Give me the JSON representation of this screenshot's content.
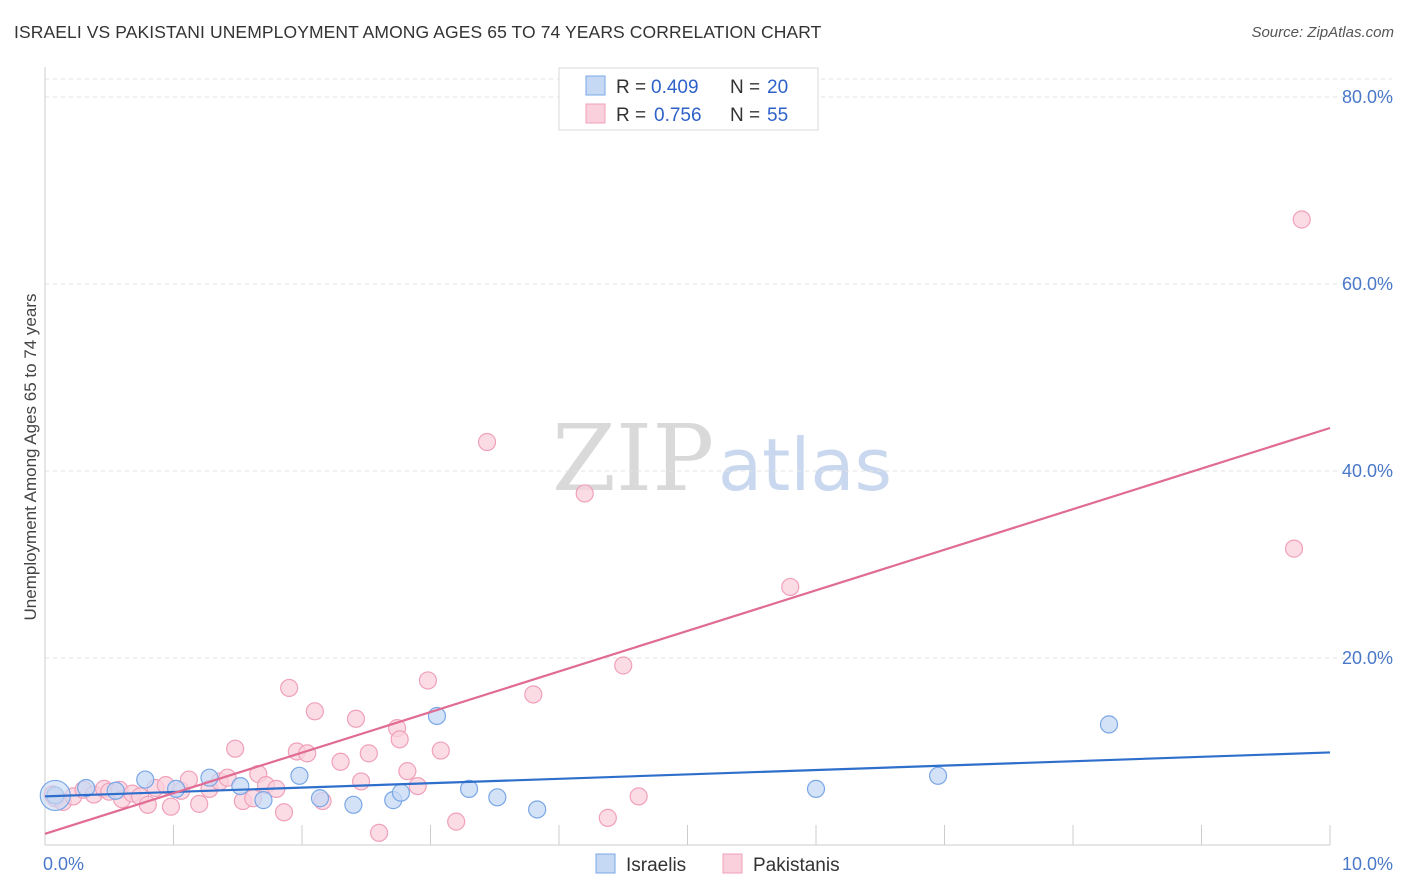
{
  "header": {
    "title": "ISRAELI VS PAKISTANI UNEMPLOYMENT AMONG AGES 65 TO 74 YEARS CORRELATION CHART",
    "source": "Source: ZipAtlas.com"
  },
  "watermark": {
    "zip": "ZIP",
    "atlas": "atlas"
  },
  "chart_data": {
    "type": "scatter",
    "title": "ISRAELI VS PAKISTANI UNEMPLOYMENT AMONG AGES 65 TO 74 YEARS CORRELATION CHART",
    "xlabel": "",
    "ylabel": "Unemployment Among Ages 65 to 74 years",
    "xlim": [
      0,
      10
    ],
    "ylim": [
      0,
      80
    ],
    "x_tick_labels": [
      "0.0%",
      "10.0%"
    ],
    "y_ticks": [
      20,
      40,
      60,
      80
    ],
    "y_tick_labels": [
      "20.0%",
      "40.0%",
      "60.0%",
      "80.0%"
    ],
    "grid": true,
    "legend_position": "top-center",
    "legend": [
      {
        "r_label": "R =",
        "r_value": "0.409",
        "n_label": "N =",
        "n_value": "20"
      },
      {
        "r_label": "R =",
        "r_value": "0.756",
        "n_label": "N =",
        "n_value": "55"
      }
    ],
    "series": [
      {
        "name": "Israelis",
        "color": "#7aa7e6",
        "fill": "#c5d8f4",
        "line_color": "#2f6fcc",
        "trend": [
          [
            0,
            5.2
          ],
          [
            10,
            9.9
          ]
        ],
        "points": [
          [
            0.08,
            5.3
          ],
          [
            0.32,
            6.1
          ],
          [
            0.55,
            5.8
          ],
          [
            0.78,
            7.0
          ],
          [
            1.02,
            6.0
          ],
          [
            1.28,
            7.2
          ],
          [
            1.52,
            6.3
          ],
          [
            1.7,
            4.8
          ],
          [
            1.98,
            7.4
          ],
          [
            2.14,
            5.0
          ],
          [
            2.4,
            4.3
          ],
          [
            2.71,
            4.8
          ],
          [
            2.77,
            5.6
          ],
          [
            3.05,
            13.8
          ],
          [
            3.3,
            6.0
          ],
          [
            3.52,
            5.1
          ],
          [
            3.83,
            3.8
          ],
          [
            6.0,
            6.0
          ],
          [
            6.95,
            7.4
          ],
          [
            8.28,
            12.9
          ]
        ]
      },
      {
        "name": "Pakistanis",
        "color": "#f0a0ba",
        "fill": "#fad0dc",
        "line_color": "#e06b93",
        "trend": [
          [
            0,
            1.2
          ],
          [
            10,
            44.6
          ]
        ],
        "points": [
          [
            0.08,
            5.0
          ],
          [
            0.14,
            4.6
          ],
          [
            0.22,
            5.2
          ],
          [
            0.3,
            5.9
          ],
          [
            0.38,
            5.4
          ],
          [
            0.46,
            6.0
          ],
          [
            0.5,
            5.7
          ],
          [
            0.58,
            5.9
          ],
          [
            0.6,
            4.9
          ],
          [
            0.68,
            5.5
          ],
          [
            0.74,
            5.2
          ],
          [
            0.8,
            4.3
          ],
          [
            0.86,
            6.1
          ],
          [
            0.94,
            6.4
          ],
          [
            0.98,
            4.1
          ],
          [
            1.06,
            5.8
          ],
          [
            1.12,
            7.0
          ],
          [
            1.2,
            4.4
          ],
          [
            1.28,
            6.0
          ],
          [
            1.36,
            6.8
          ],
          [
            1.42,
            7.2
          ],
          [
            1.48,
            10.3
          ],
          [
            1.54,
            4.7
          ],
          [
            1.62,
            5.0
          ],
          [
            1.66,
            7.6
          ],
          [
            1.72,
            6.4
          ],
          [
            1.8,
            6.0
          ],
          [
            1.86,
            3.5
          ],
          [
            1.9,
            16.8
          ],
          [
            1.96,
            10.0
          ],
          [
            2.04,
            9.8
          ],
          [
            2.1,
            14.3
          ],
          [
            2.16,
            4.7
          ],
          [
            2.3,
            8.9
          ],
          [
            2.42,
            13.5
          ],
          [
            2.46,
            6.8
          ],
          [
            2.52,
            9.8
          ],
          [
            2.6,
            1.3
          ],
          [
            2.74,
            12.5
          ],
          [
            2.76,
            11.3
          ],
          [
            2.82,
            7.9
          ],
          [
            2.9,
            6.3
          ],
          [
            2.98,
            17.6
          ],
          [
            3.08,
            10.1
          ],
          [
            3.2,
            2.5
          ],
          [
            3.44,
            43.1
          ],
          [
            3.8,
            16.1
          ],
          [
            4.2,
            37.6
          ],
          [
            4.38,
            2.9
          ],
          [
            4.5,
            19.2
          ],
          [
            4.62,
            5.2
          ],
          [
            5.8,
            27.6
          ],
          [
            9.72,
            31.7
          ],
          [
            9.78,
            66.9
          ],
          [
            0.06,
            5.4
          ]
        ]
      }
    ]
  }
}
